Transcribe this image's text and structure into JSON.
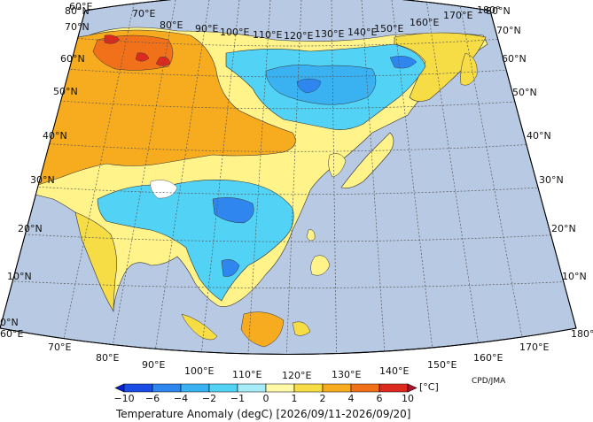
{
  "map": {
    "lon_labels": [
      "60°E",
      "70°E",
      "80°E",
      "90°E",
      "100°E",
      "110°E",
      "120°E",
      "130°E",
      "140°E",
      "150°E",
      "160°E",
      "170°E",
      "180°"
    ],
    "lat_labels": [
      "0°N",
      "10°N",
      "20°N",
      "30°N",
      "40°N",
      "50°N",
      "60°N",
      "70°N",
      "80°N"
    ],
    "credit": "CPD/JMA",
    "title": "Temperature Anomaly (degC) [2026/09/11-2026/09/20]"
  },
  "colorbar": {
    "unit": "[°C]",
    "tick_labels": [
      "−10",
      "−6",
      "−4",
      "−2",
      "−1",
      "0",
      "1",
      "2",
      "4",
      "6",
      "10"
    ],
    "bins": [
      {
        "color": "#0a1fcf"
      },
      {
        "color": "#1a4ce6"
      },
      {
        "color": "#2f86ee"
      },
      {
        "color": "#3ab2f2"
      },
      {
        "color": "#52d2f5"
      },
      {
        "color": "#a6ecf8"
      },
      {
        "color": "#fff9a8"
      },
      {
        "color": "#f7dd45"
      },
      {
        "color": "#f7ab1f"
      },
      {
        "color": "#f0711a"
      },
      {
        "color": "#dc2a1e"
      },
      {
        "color": "#b5102a"
      }
    ]
  },
  "colors": {
    "ocean": "#b8c9e4",
    "background": "#ffffff"
  }
}
